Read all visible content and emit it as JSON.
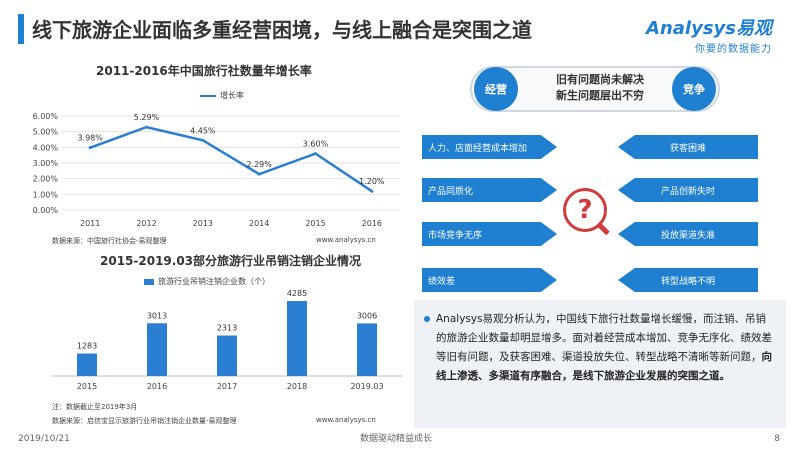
{
  "header": {
    "title": "线下旅游企业面临多重经营困境，与线上融合是突围之道",
    "logo_name": "Analysys易观",
    "logo_slogan": "你要的数据能力"
  },
  "chart_data": [
    {
      "type": "line",
      "title": "2011-2016年中国旅行社数量年增长率",
      "legend": "增长率",
      "categories": [
        "2011",
        "2012",
        "2013",
        "2014",
        "2015",
        "2016"
      ],
      "values": [
        3.98,
        5.29,
        4.45,
        2.29,
        3.6,
        1.2
      ],
      "data_labels": [
        "3.98%",
        "5.29%",
        "4.45%",
        "2.29%",
        "3.60%",
        "1.20%"
      ],
      "y_ticks": [
        "0.00%",
        "1.00%",
        "2.00%",
        "3.00%",
        "4.00%",
        "5.00%",
        "6.00%"
      ],
      "ylim": [
        0,
        6
      ],
      "grid": true,
      "color": "#2b7fd2",
      "source": "数据来源：中国旅行社协会-易观整理",
      "url": "www.analysys.cn"
    },
    {
      "type": "bar",
      "title": "2015-2019.03部分旅游行业吊销注销企业情况",
      "legend": "旅游行业吊销注销企业数（个）",
      "categories": [
        "2015",
        "2016",
        "2017",
        "2018",
        "2019.03"
      ],
      "values": [
        1283,
        3013,
        2313,
        4285,
        3006
      ],
      "data_labels": [
        "1283",
        "3013",
        "2313",
        "4285",
        "3006"
      ],
      "ylim": [
        0,
        4800
      ],
      "color": "#2b7fd2",
      "note": "注：数据截止至2019年3月",
      "source": "数据来源：启信宝显示旅游行业吊销注销企业数量-易观整理",
      "url": "www.analysys.cn"
    }
  ],
  "diagram": {
    "left_circle": "经营",
    "right_circle": "竞争",
    "oval_line1": "旧有问题尚未解决",
    "oval_line2": "新生问题层出不穷",
    "question_mark": "?",
    "left_items": [
      "人力、店面经营成本增加",
      "产品同质化",
      "市场竞争无序",
      "绩效差"
    ],
    "right_items": [
      "获客困难",
      "产品创新失时",
      "投放渠道失准",
      "转型战略不明"
    ]
  },
  "summary": {
    "normal": "Analysys易观分析认为，中国线下旅行社数量增长缓慢，而注销、吊销的旅游企业数量却明显增多。面对着经营成本增加、竞争无序化、绩效差等旧有问题，及获客困难、渠道投放失位、转型战略不清晰等新问题，",
    "bold": "向线上渗透、多渠道有序融合，是线下旅游企业发展的突围之道。"
  },
  "footer": {
    "date": "2019/10/21",
    "center": "数据驱动精益成长",
    "page": "8"
  }
}
